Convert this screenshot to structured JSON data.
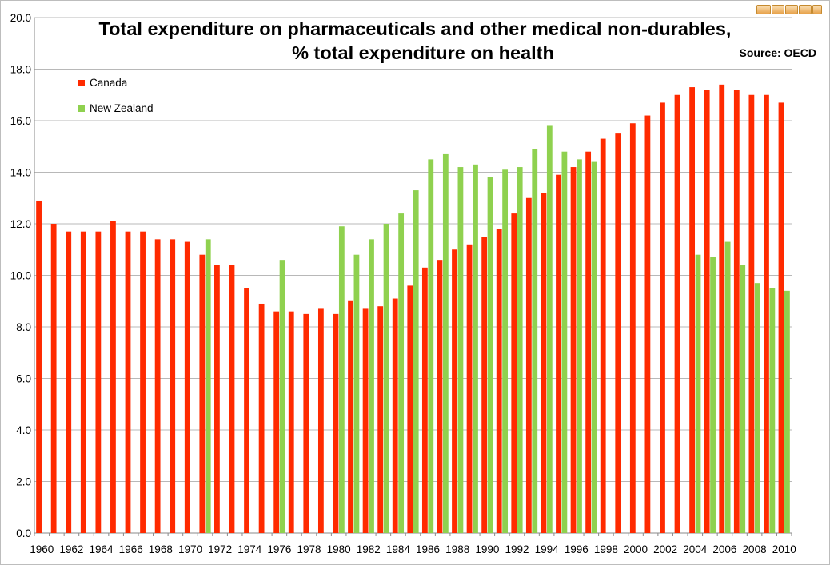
{
  "chart_data": {
    "type": "bar",
    "title": [
      "Total expenditure on pharmaceuticals and other medical non-durables,",
      "% total expenditure on health"
    ],
    "annotation": "Source: OECD",
    "ylim": [
      0,
      20
    ],
    "yticks": [
      "0.0",
      "2.0",
      "4.0",
      "6.0",
      "8.0",
      "10.0",
      "12.0",
      "14.0",
      "16.0",
      "18.0",
      "20.0"
    ],
    "grid": true,
    "legend_position": "top-left",
    "categories": [
      1960,
      1961,
      1962,
      1963,
      1964,
      1965,
      1966,
      1967,
      1968,
      1969,
      1970,
      1971,
      1972,
      1973,
      1974,
      1975,
      1976,
      1977,
      1978,
      1979,
      1980,
      1981,
      1982,
      1983,
      1984,
      1985,
      1986,
      1987,
      1988,
      1989,
      1990,
      1991,
      1992,
      1993,
      1994,
      1995,
      1996,
      1997,
      1998,
      1999,
      2000,
      2001,
      2002,
      2003,
      2004,
      2005,
      2006,
      2007,
      2008,
      2009,
      2010
    ],
    "xtick_labels": [
      "1960",
      "1962",
      "1964",
      "1966",
      "1968",
      "1970",
      "1972",
      "1974",
      "1976",
      "1978",
      "1980",
      "1982",
      "1984",
      "1986",
      "1988",
      "1990",
      "1992",
      "1994",
      "1996",
      "1998",
      "2000",
      "2002",
      "2004",
      "2006",
      "2008",
      "2010"
    ],
    "series": [
      {
        "name": "Canada",
        "color": "#ff2a00",
        "values": [
          12.9,
          12.0,
          11.7,
          11.7,
          11.7,
          12.1,
          11.7,
          11.7,
          11.4,
          11.4,
          11.3,
          10.8,
          10.4,
          10.4,
          9.5,
          8.9,
          8.6,
          8.6,
          8.5,
          8.7,
          8.5,
          9.0,
          8.7,
          8.8,
          9.1,
          9.6,
          10.3,
          10.6,
          11.0,
          11.2,
          11.5,
          11.8,
          12.4,
          13.0,
          13.2,
          13.9,
          14.2,
          14.8,
          15.3,
          15.5,
          15.9,
          16.2,
          16.7,
          17.0,
          17.3,
          17.2,
          17.4,
          17.2,
          17.0,
          17.0,
          16.7
        ]
      },
      {
        "name": "New Zealand",
        "color": "#8fd14f",
        "values": [
          null,
          null,
          null,
          null,
          null,
          null,
          null,
          null,
          null,
          null,
          null,
          11.4,
          null,
          null,
          null,
          null,
          10.6,
          null,
          null,
          null,
          11.9,
          10.8,
          11.4,
          12.0,
          12.4,
          13.3,
          14.5,
          14.7,
          14.2,
          14.3,
          13.8,
          14.1,
          14.2,
          14.9,
          15.8,
          14.8,
          14.5,
          14.4,
          null,
          null,
          null,
          null,
          null,
          null,
          10.8,
          10.7,
          11.3,
          10.4,
          9.7,
          9.5,
          9.4
        ]
      }
    ]
  }
}
